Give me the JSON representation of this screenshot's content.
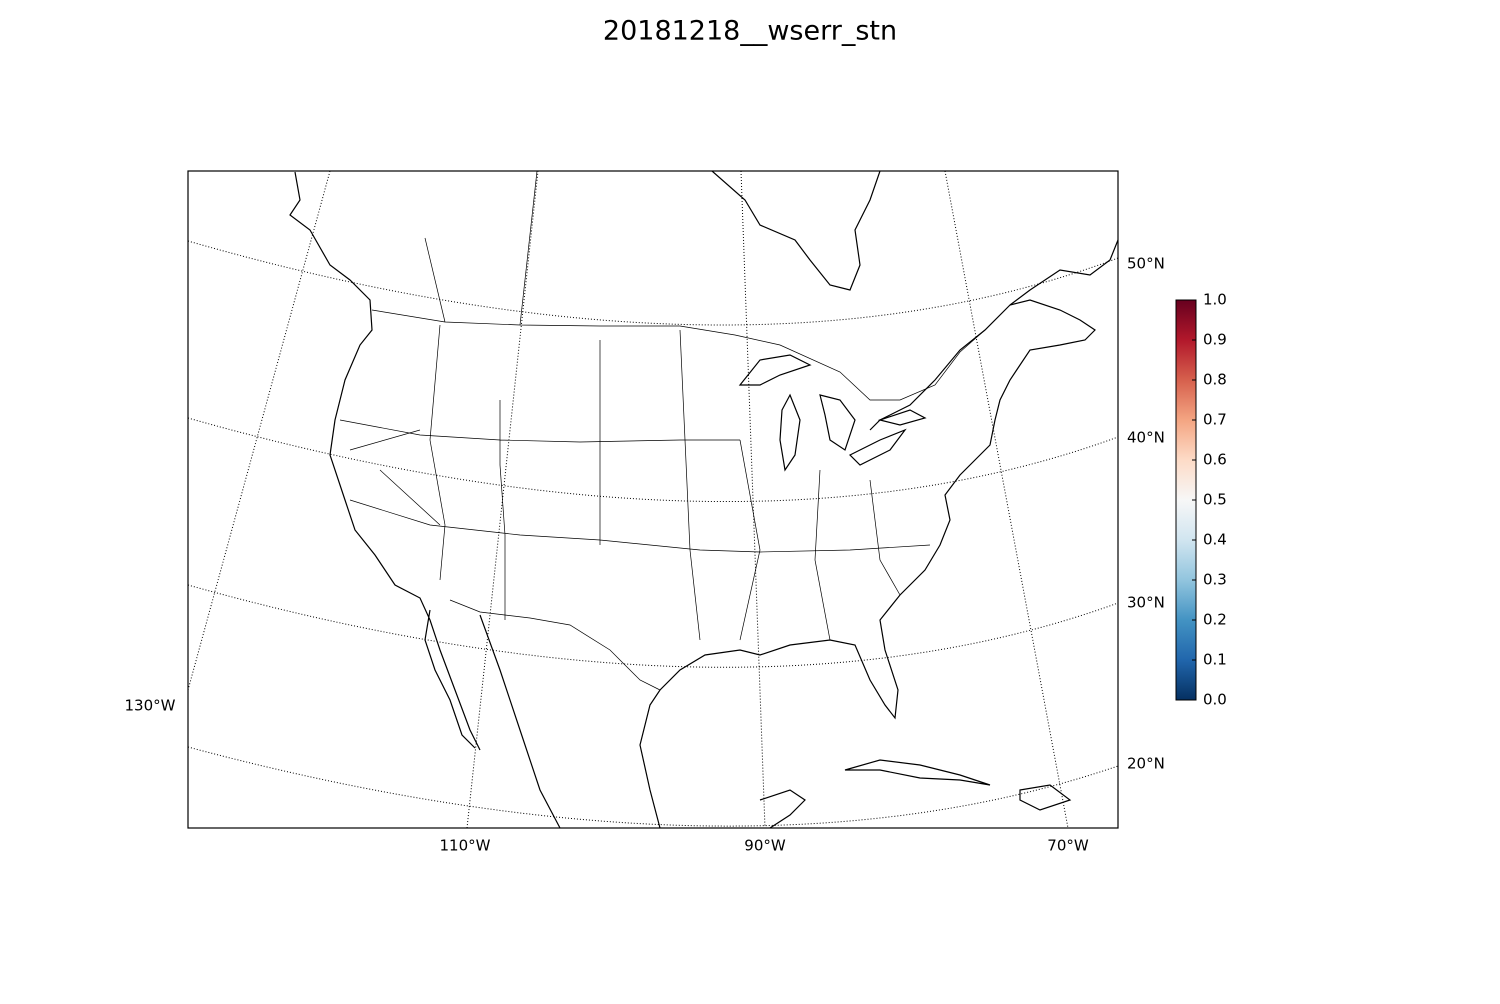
{
  "title": "20181218__wserr_stn",
  "map": {
    "meridian_labels": [
      "130°W",
      "110°W",
      "90°W",
      "70°W"
    ],
    "parallel_labels": [
      "50°N",
      "40°N",
      "30°N",
      "20°N"
    ]
  },
  "colorbar": {
    "clim": [
      0,
      1
    ],
    "colors": [
      "#053061",
      "#2166ac",
      "#4393c3",
      "#92c5de",
      "#d1e5f0",
      "#f7f7f7",
      "#fddbc7",
      "#f4a582",
      "#d6604d",
      "#b2182b",
      "#67001f"
    ],
    "ticks": [
      {
        "value": 0,
        "label": "0.0"
      },
      0.1,
      0.2,
      0.3,
      0.4,
      0.5,
      0.6,
      0.7,
      0.8,
      0.9,
      {
        "value": 1,
        "label": "1.0"
      }
    ]
  }
}
